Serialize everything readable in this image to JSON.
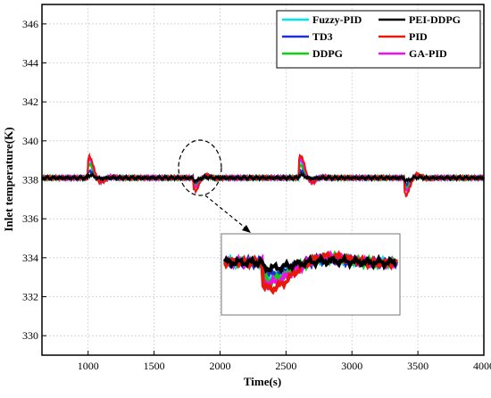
{
  "chart_data": {
    "type": "line",
    "xlabel": "Time(s)",
    "ylabel": "Inlet temperature(K)",
    "xlim": [
      650,
      4000
    ],
    "ylim": [
      329,
      347
    ],
    "xticks": [
      1000,
      1500,
      2000,
      2500,
      3000,
      3500,
      4000
    ],
    "yticks": [
      330,
      332,
      334,
      336,
      338,
      340,
      342,
      344,
      346
    ],
    "grid": true,
    "legend_position": "top-right",
    "baseline": 338.1,
    "disturbance_times": [
      1000,
      1800,
      2600,
      3400
    ],
    "series": [
      {
        "name": "Fuzzy-PID",
        "color": "#00e5ee",
        "peaks": [
          339.2,
          337.6,
          339.2,
          337.6
        ]
      },
      {
        "name": "PEI-DDPG",
        "color": "#000000",
        "peaks": [
          338.3,
          337.9,
          338.3,
          337.9
        ]
      },
      {
        "name": "TD3",
        "color": "#1a33cc",
        "peaks": [
          338.6,
          337.7,
          338.6,
          337.6
        ]
      },
      {
        "name": "PID",
        "color": "#e8180c",
        "peaks": [
          339.6,
          337.2,
          339.7,
          336.9
        ]
      },
      {
        "name": "DDPG",
        "color": "#11cc11",
        "peaks": [
          339.0,
          337.5,
          339.0,
          337.4
        ]
      },
      {
        "name": "GA-PID",
        "color": "#ee11ee",
        "peaks": [
          339.4,
          337.4,
          339.4,
          337.2
        ]
      }
    ]
  }
}
